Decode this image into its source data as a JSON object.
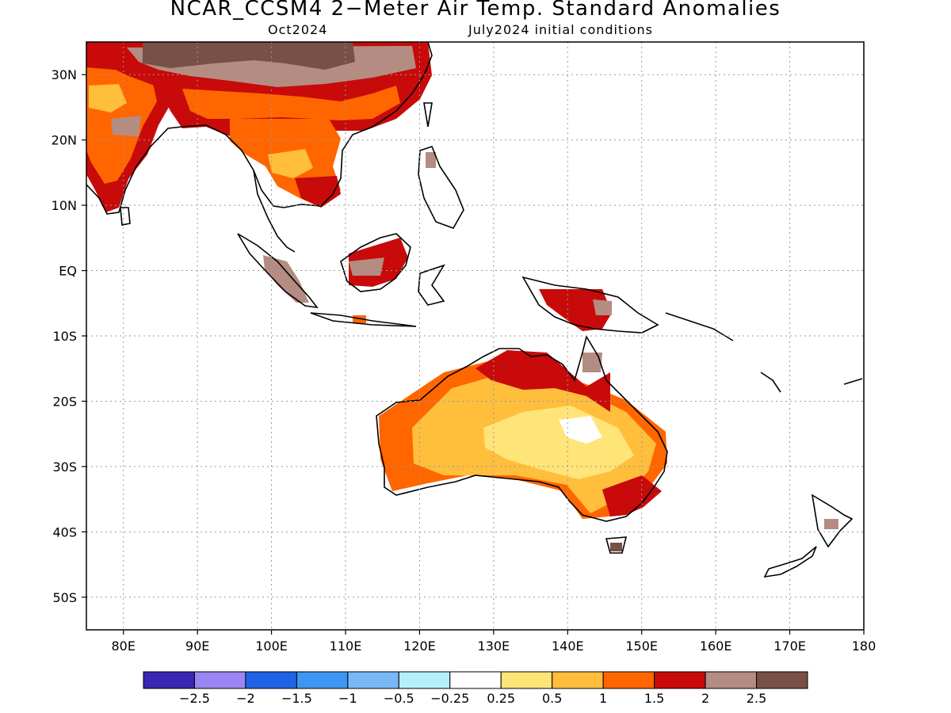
{
  "title": "NCAR_CCSM4 2−Meter Air Temp. Standard Anomalies",
  "subtitle_left": "Oct2024",
  "subtitle_right": "July2024 initial conditions",
  "map": {
    "lon_range": [
      75,
      180
    ],
    "lat_range": [
      -55,
      35
    ],
    "lon_labels": [
      "80E",
      "90E",
      "100E",
      "110E",
      "120E",
      "130E",
      "140E",
      "150E",
      "160E",
      "170E",
      "180"
    ],
    "lat_labels": [
      "30N",
      "20N",
      "10N",
      "EQ",
      "10S",
      "20S",
      "30S",
      "40S",
      "50S"
    ],
    "grid": true
  },
  "legend": {
    "colors": [
      "#3a26b4",
      "#9a86f2",
      "#1f64e6",
      "#3c96f2",
      "#78b8f6",
      "#b4f0fa",
      "#ffffff",
      "#ffe478",
      "#ffbe3c",
      "#ff6600",
      "#c80a0a",
      "#b48c82",
      "#785046"
    ],
    "labels": [
      "−2.5",
      "−2",
      "−1.5",
      "−1",
      "−0.5",
      "−0.25",
      "0.25",
      "0.5",
      "1",
      "1.5",
      "2",
      "2.5"
    ]
  }
}
